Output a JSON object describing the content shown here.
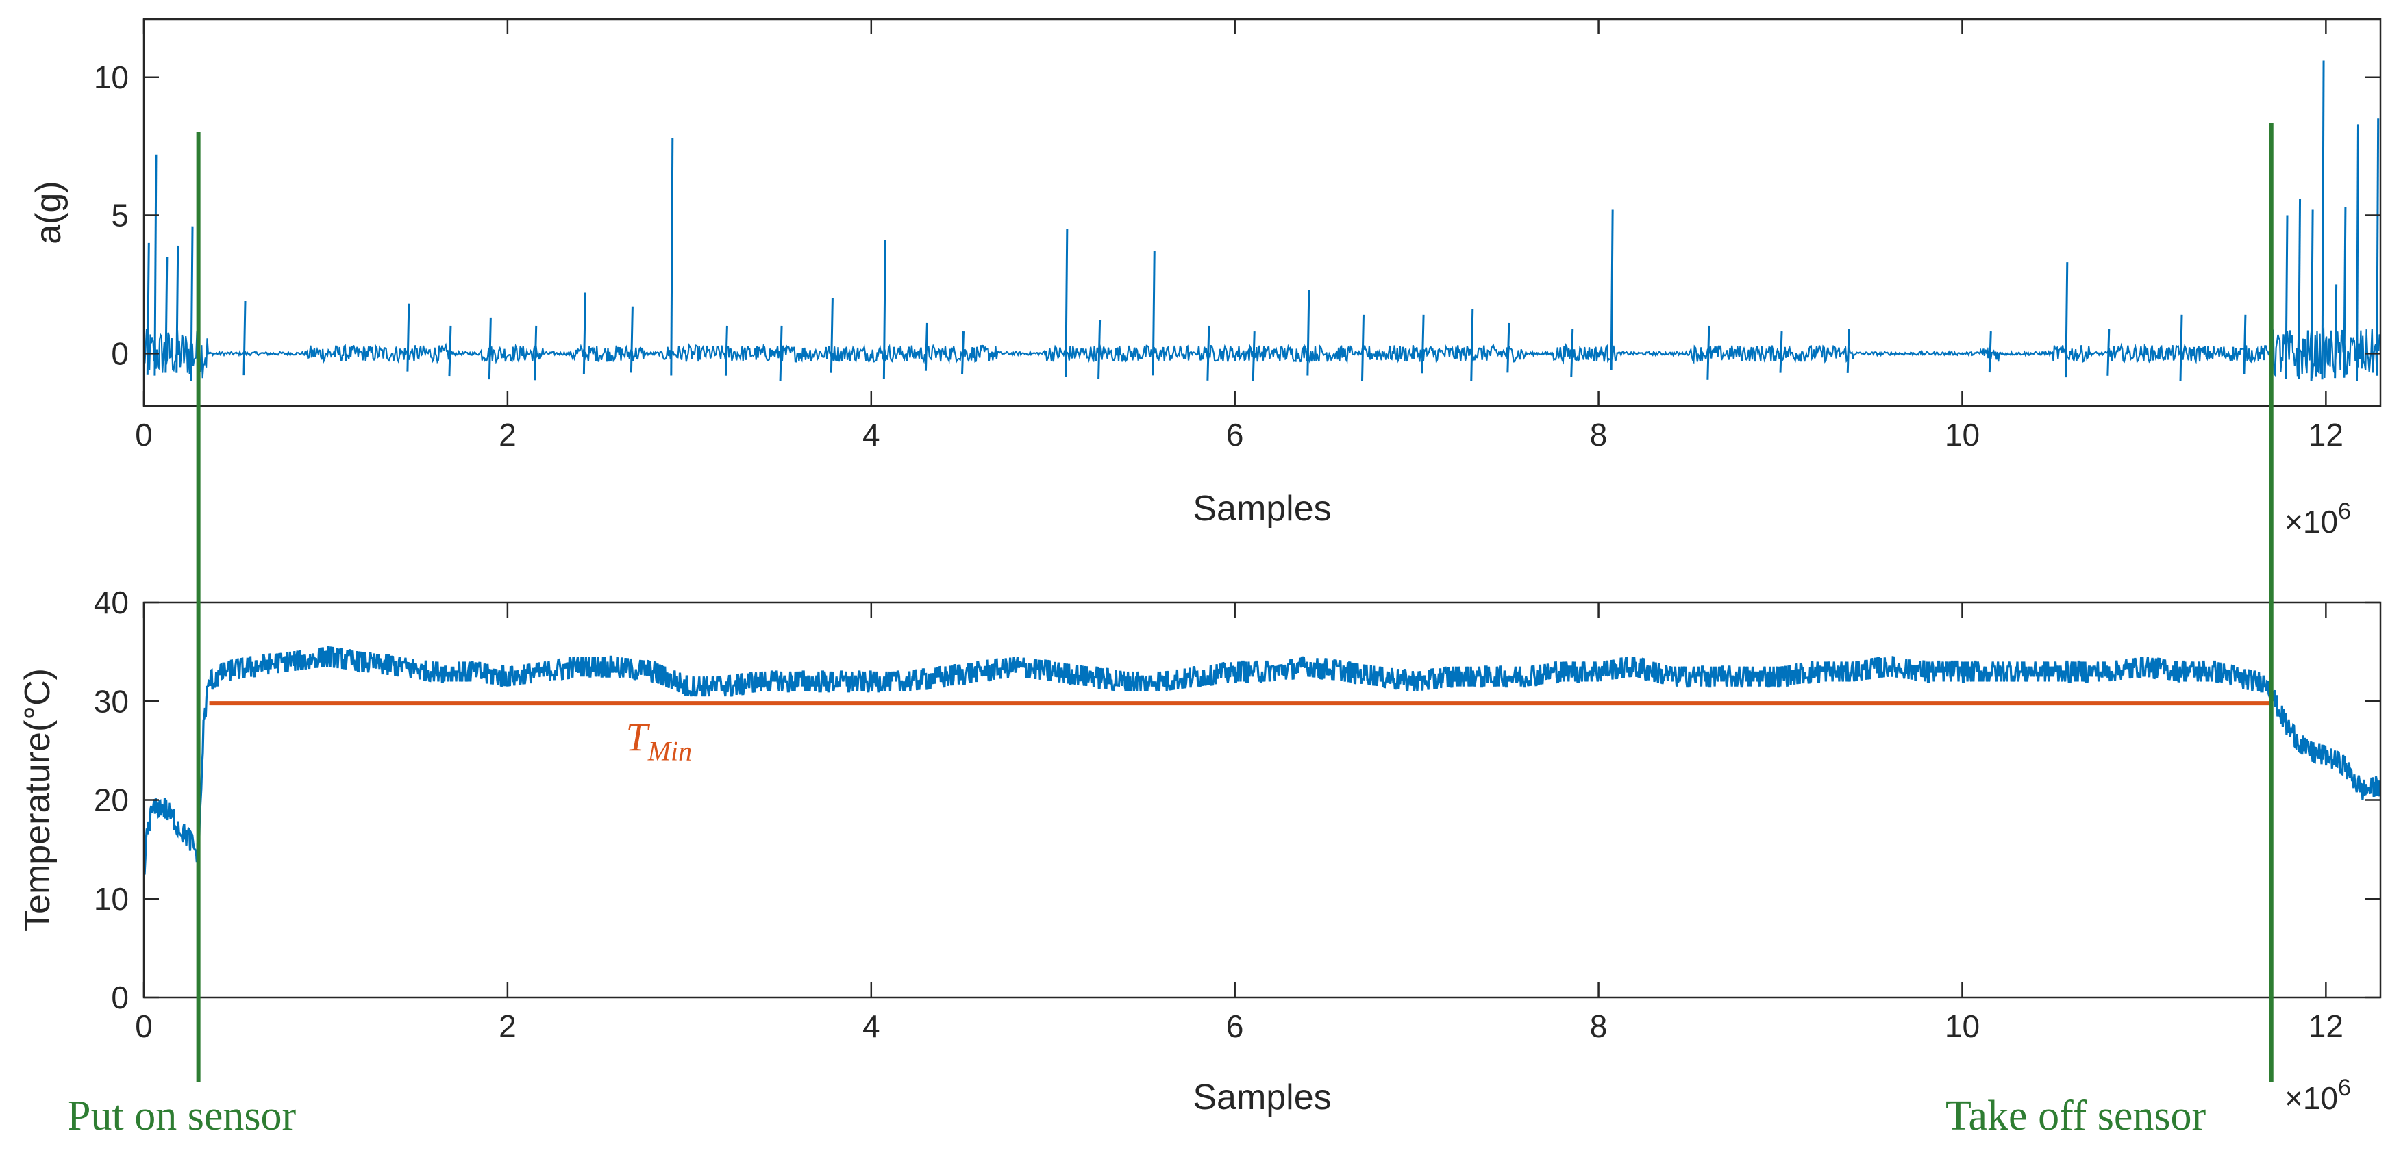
{
  "colors": {
    "signal": "#0072BD",
    "tmin": "#D95319",
    "marker": "#2E7D32",
    "axis": "#262626"
  },
  "chart_data": [
    {
      "type": "line",
      "title": "",
      "xlabel": "Samples",
      "ylabel": "a(g)",
      "x_exponent": "×10^6",
      "xlim": [
        0,
        12.3
      ],
      "ylim": [
        -1.9,
        12.1
      ],
      "xticks": [
        0,
        2,
        4,
        6,
        8,
        10,
        12
      ],
      "xtick_labels": [
        "0",
        "2",
        "4",
        "6",
        "8",
        "10",
        "12"
      ],
      "yticks": [
        0,
        5,
        10
      ],
      "ytick_labels": [
        "0",
        "5",
        "10"
      ],
      "series": [
        {
          "name": "acceleration",
          "baseline": 0,
          "spikes": [
            {
              "x": 0.02,
              "y": 4.0
            },
            {
              "x": 0.06,
              "y": 7.2
            },
            {
              "x": 0.12,
              "y": 3.5
            },
            {
              "x": 0.18,
              "y": 3.9
            },
            {
              "x": 0.26,
              "y": 4.6
            },
            {
              "x": 0.55,
              "y": 1.9
            },
            {
              "x": 1.45,
              "y": 1.8
            },
            {
              "x": 1.68,
              "y": 1.0
            },
            {
              "x": 1.9,
              "y": 1.3
            },
            {
              "x": 2.15,
              "y": 1.0
            },
            {
              "x": 2.42,
              "y": 2.2
            },
            {
              "x": 2.68,
              "y": 1.7
            },
            {
              "x": 2.9,
              "y": 7.8
            },
            {
              "x": 3.2,
              "y": 1.0
            },
            {
              "x": 3.5,
              "y": 1.0
            },
            {
              "x": 3.78,
              "y": 2.0
            },
            {
              "x": 4.07,
              "y": 4.1
            },
            {
              "x": 4.3,
              "y": 1.1
            },
            {
              "x": 4.5,
              "y": 0.8
            },
            {
              "x": 5.07,
              "y": 4.5
            },
            {
              "x": 5.25,
              "y": 1.2
            },
            {
              "x": 5.55,
              "y": 3.7
            },
            {
              "x": 5.85,
              "y": 1.0
            },
            {
              "x": 6.1,
              "y": 0.8
            },
            {
              "x": 6.4,
              "y": 2.3
            },
            {
              "x": 6.7,
              "y": 1.4
            },
            {
              "x": 7.03,
              "y": 1.4
            },
            {
              "x": 7.3,
              "y": 1.6
            },
            {
              "x": 7.5,
              "y": 1.1
            },
            {
              "x": 7.85,
              "y": 0.9
            },
            {
              "x": 8.07,
              "y": 5.2
            },
            {
              "x": 8.6,
              "y": 1.0
            },
            {
              "x": 9.0,
              "y": 0.8
            },
            {
              "x": 9.37,
              "y": 0.9
            },
            {
              "x": 10.15,
              "y": 0.8
            },
            {
              "x": 10.57,
              "y": 3.3
            },
            {
              "x": 10.8,
              "y": 0.9
            },
            {
              "x": 11.2,
              "y": 1.4
            },
            {
              "x": 11.55,
              "y": 1.4
            },
            {
              "x": 11.78,
              "y": 5.0
            },
            {
              "x": 11.85,
              "y": 5.6
            },
            {
              "x": 11.92,
              "y": 5.2
            },
            {
              "x": 11.98,
              "y": 10.6
            },
            {
              "x": 12.05,
              "y": 2.5
            },
            {
              "x": 12.1,
              "y": 5.3
            },
            {
              "x": 12.17,
              "y": 8.3
            },
            {
              "x": 12.28,
              "y": 8.5
            }
          ],
          "active_ranges": [
            [
              0.0,
              0.35
            ],
            [
              0.9,
              1.7
            ],
            [
              1.85,
              2.2
            ],
            [
              2.35,
              2.75
            ],
            [
              2.85,
              4.7
            ],
            [
              4.95,
              5.75
            ],
            [
              5.8,
              6.65
            ],
            [
              6.7,
              7.6
            ],
            [
              7.75,
              8.1
            ],
            [
              8.5,
              9.4
            ],
            [
              10.1,
              10.2
            ],
            [
              10.5,
              10.7
            ],
            [
              10.8,
              11.7
            ],
            [
              11.7,
              12.3
            ]
          ]
        }
      ]
    },
    {
      "type": "line",
      "title": "",
      "xlabel": "Samples",
      "ylabel": "Temperature(°C)",
      "x_exponent": "×10^6",
      "xlim": [
        0,
        12.3
      ],
      "ylim": [
        0,
        40
      ],
      "xticks": [
        0,
        2,
        4,
        6,
        8,
        10,
        12
      ],
      "xtick_labels": [
        "0",
        "2",
        "4",
        "6",
        "8",
        "10",
        "12"
      ],
      "yticks": [
        0,
        10,
        20,
        30,
        40
      ],
      "ytick_labels": [
        "0",
        "10",
        "20",
        "30",
        "40"
      ],
      "series": [
        {
          "name": "temperature",
          "x": [
            0,
            0.02,
            0.05,
            0.1,
            0.15,
            0.2,
            0.25,
            0.28,
            0.3,
            0.33,
            0.36,
            0.45,
            0.6,
            0.8,
            1.0,
            1.2,
            1.4,
            1.6,
            1.8,
            2.0,
            2.2,
            2.4,
            2.6,
            2.8,
            3.0,
            3.2,
            3.4,
            3.6,
            3.8,
            4.0,
            4.2,
            4.4,
            4.6,
            4.8,
            5.0,
            5.2,
            5.4,
            5.6,
            5.8,
            6.0,
            6.2,
            6.4,
            6.6,
            6.8,
            7.0,
            7.2,
            7.4,
            7.6,
            7.8,
            8.0,
            8.2,
            8.4,
            8.6,
            8.8,
            9.0,
            9.2,
            9.4,
            9.6,
            9.8,
            10.0,
            10.2,
            10.4,
            10.6,
            10.8,
            11.0,
            11.2,
            11.4,
            11.6,
            11.68,
            11.72,
            11.8,
            11.9,
            12.0,
            12.1,
            12.2,
            12.3
          ],
          "y": [
            12,
            17,
            19,
            19.5,
            18.5,
            17,
            16,
            15,
            14.5,
            28,
            32,
            33,
            33.5,
            34,
            34.5,
            34,
            33.5,
            33,
            33,
            32.5,
            33,
            33.5,
            33.5,
            33,
            31.5,
            31.5,
            32,
            32,
            32,
            32,
            32,
            32.5,
            33,
            33.5,
            33,
            32.5,
            32,
            32,
            32.5,
            33,
            33,
            33.5,
            33,
            32.5,
            32,
            32.5,
            32.5,
            32.5,
            33,
            33,
            33.5,
            32.5,
            32.5,
            32.5,
            32.5,
            33,
            33,
            33.5,
            33,
            33,
            33,
            33,
            33,
            33,
            33.5,
            33,
            33,
            32,
            32,
            30,
            27,
            25,
            24.5,
            23.5,
            21,
            21.5
          ],
          "noise": 1.2
        },
        {
          "name": "T_Min",
          "x": [
            0.36,
            11.7
          ],
          "y": [
            29.8,
            29.8
          ]
        }
      ],
      "annotations": [
        {
          "text": "T",
          "subscript": "Min",
          "x": 2.65,
          "y": 25
        }
      ]
    }
  ],
  "markers": [
    {
      "label": "Put on sensor",
      "x": 0.3
    },
    {
      "label": "Take off sensor",
      "x": 11.7
    }
  ]
}
